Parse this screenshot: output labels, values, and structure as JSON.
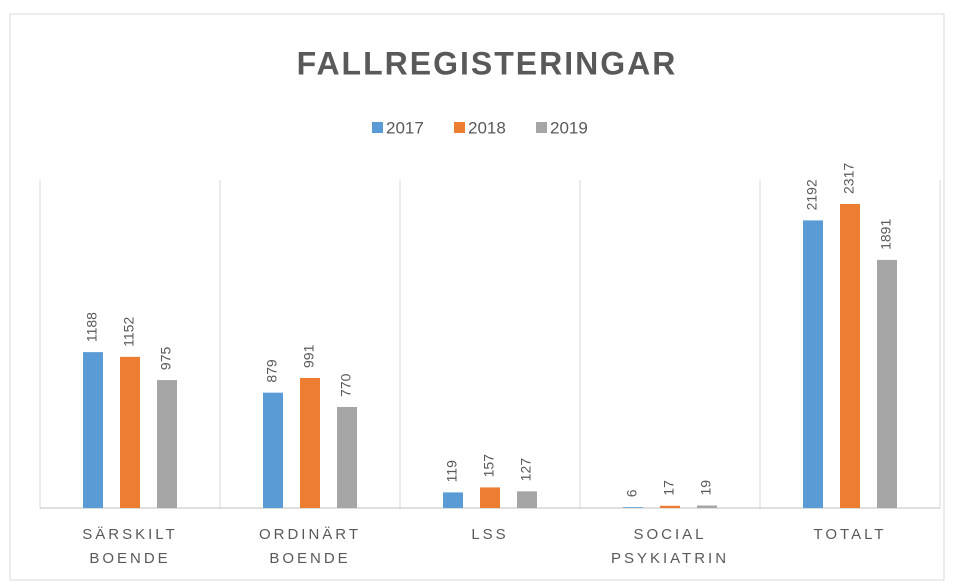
{
  "chart_data": {
    "type": "bar",
    "title": "FALLREGISTERINGAR",
    "categories": [
      "SÄRSKILT BOENDE",
      "ORDINÄRT BOENDE",
      "LSS",
      "SOCIAL PSYKIATRIN",
      "TOTALT"
    ],
    "series": [
      {
        "name": "2017",
        "color": "#5b9bd5",
        "values": [
          1188,
          879,
          119,
          6,
          2192
        ]
      },
      {
        "name": "2018",
        "color": "#ed7d31",
        "values": [
          1152,
          991,
          157,
          17,
          2317
        ]
      },
      {
        "name": "2019",
        "color": "#a5a5a5",
        "values": [
          975,
          770,
          127,
          19,
          1891
        ]
      }
    ],
    "ylim": [
      0,
      2500
    ],
    "legend": "top",
    "grid": false
  }
}
